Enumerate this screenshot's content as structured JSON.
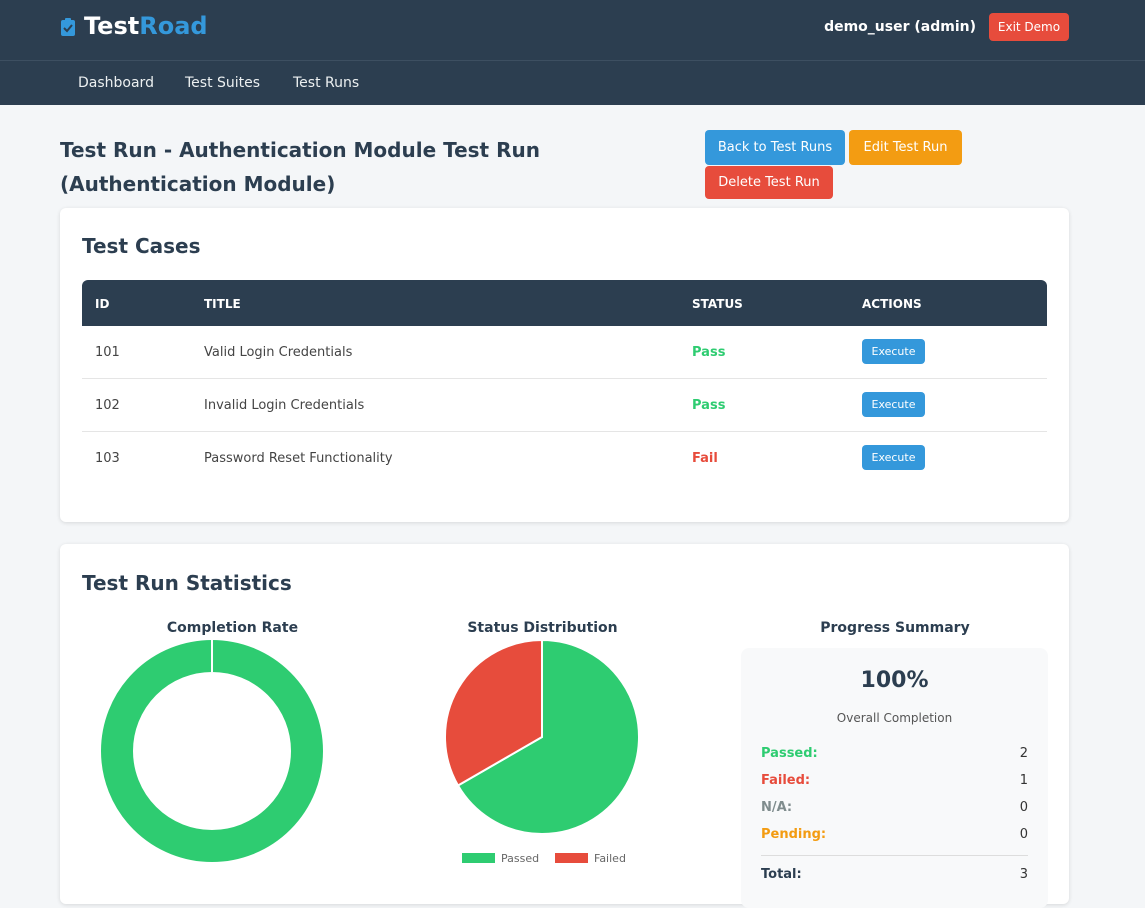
{
  "header": {
    "logo_a": "Test",
    "logo_b": "Road",
    "user": "demo_user (admin)",
    "exit": "Exit Demo"
  },
  "nav": [
    "Dashboard",
    "Test Suites",
    "Test Runs"
  ],
  "page": {
    "title": "Test Run - Authentication Module Test Run (Authentication Module)",
    "buttons": [
      "Back to Test Runs",
      "Edit Test Run",
      "Delete Test Run"
    ]
  },
  "cases": {
    "title": "Test Cases",
    "columns": [
      "ID",
      "TITLE",
      "STATUS",
      "ACTIONS"
    ],
    "rows": [
      [
        "101",
        "Valid Login Credentials",
        "Pass",
        "Execute"
      ],
      [
        "102",
        "Invalid Login Credentials",
        "Pass",
        "Execute"
      ],
      [
        "103",
        "Password Reset Functionality",
        "Fail",
        "Execute"
      ]
    ]
  },
  "stats": {
    "title": "Test Run Statistics",
    "completion": {
      "type": "doughnut",
      "title": "Completion Rate",
      "values": [
        100
      ],
      "color": "#2ecc71"
    },
    "distribution": {
      "type": "pie",
      "title": "Status Distribution",
      "series": [
        {
          "name": "Passed",
          "color": "#2ecc71",
          "value": 2
        },
        {
          "name": "Failed",
          "color": "#e74c3c",
          "value": 1
        }
      ]
    },
    "summary": {
      "title": "Progress Summary",
      "percent": "100%",
      "caption": "Overall Completion",
      "rows": [
        [
          "Passed:",
          2
        ],
        [
          "Failed:",
          1
        ],
        [
          "N/A:",
          0
        ],
        [
          "Pending:",
          0
        ],
        [
          "Total:",
          3
        ]
      ]
    }
  }
}
